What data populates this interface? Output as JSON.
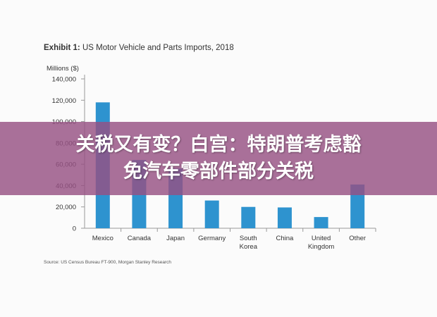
{
  "exhibit": {
    "label": "Exhibit 1:",
    "title": "US Motor Vehicle and Parts Imports, 2018"
  },
  "source": "Source: US Census Bureau FT-900, Morgan Stanley Research",
  "overlay": {
    "line1": "关税又有变？白宫：特朗普考虑豁",
    "line2": "免汽车零部件部分关税"
  },
  "colors": {
    "bar": "#2e93cf",
    "axis": "#999999",
    "overlay": "#96508a"
  },
  "chart_data": {
    "type": "bar",
    "title": "US Motor Vehicle and Parts Imports, 2018",
    "ylabel": "Millions ($)",
    "ylim": [
      0,
      140000
    ],
    "yticks": [
      "140,000",
      "120,000",
      "100,000",
      "80,000",
      "60,000",
      "40,000",
      "20,000",
      "0"
    ],
    "ytick_values": [
      140000,
      120000,
      100000,
      80000,
      60000,
      40000,
      20000,
      0
    ],
    "categories": [
      [
        "Mexico"
      ],
      [
        "Canada"
      ],
      [
        "Japan"
      ],
      [
        "Germany"
      ],
      [
        "South",
        "Korea"
      ],
      [
        "China"
      ],
      [
        "United",
        "Kingdom"
      ],
      [
        "Other"
      ]
    ],
    "values": [
      118000,
      64000,
      56000,
      26000,
      20000,
      19500,
      10500,
      41000
    ]
  }
}
